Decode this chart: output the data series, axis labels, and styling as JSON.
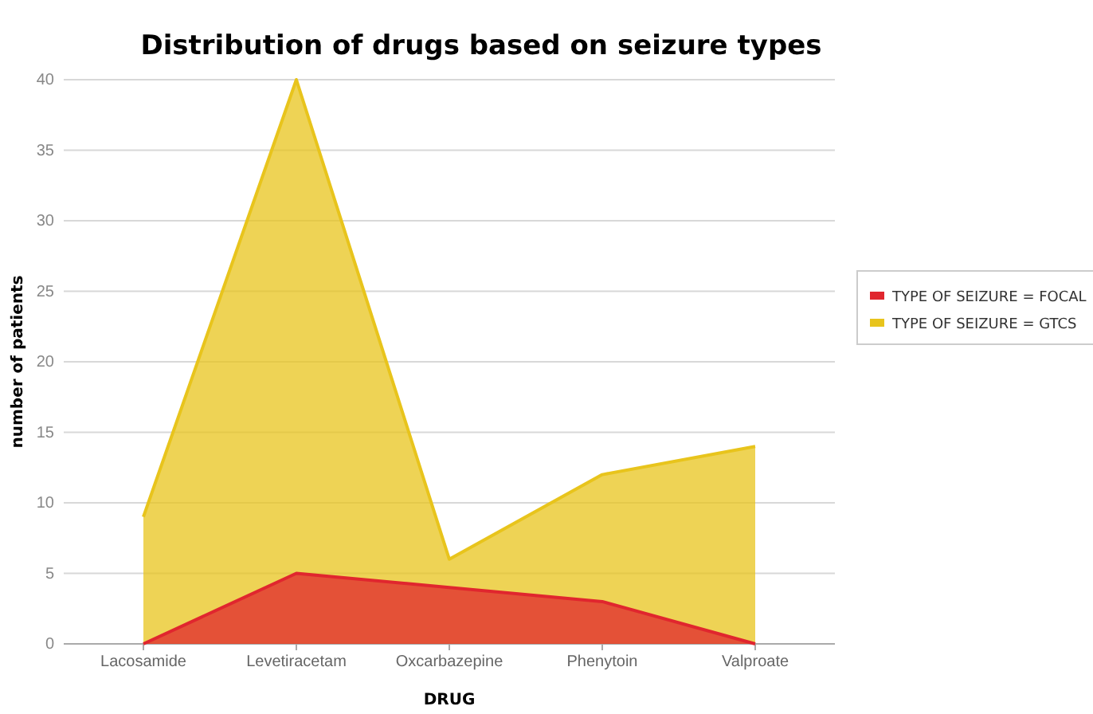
{
  "chart_data": {
    "type": "area",
    "title": "Distribution of drugs based on seizure types",
    "xlabel": "DRUG",
    "ylabel": "number of patients",
    "categories": [
      "Lacosamide",
      "Levetiracetam",
      "Oxcarbazepine",
      "Phenytoin",
      "Valproate"
    ],
    "series": [
      {
        "name": "TYPE OF SEIZURE = GTCS",
        "color": "#e8c41c",
        "values": [
          9,
          40,
          6,
          12,
          14
        ]
      },
      {
        "name": "TYPE OF SEIZURE = FOCAL",
        "color": "#e0262e",
        "values": [
          0,
          5,
          4,
          3,
          0
        ]
      }
    ],
    "ylim": [
      0,
      40
    ],
    "yticks": [
      0,
      5,
      10,
      15,
      20,
      25,
      30,
      35,
      40
    ],
    "grid": "y",
    "legend": "right"
  }
}
